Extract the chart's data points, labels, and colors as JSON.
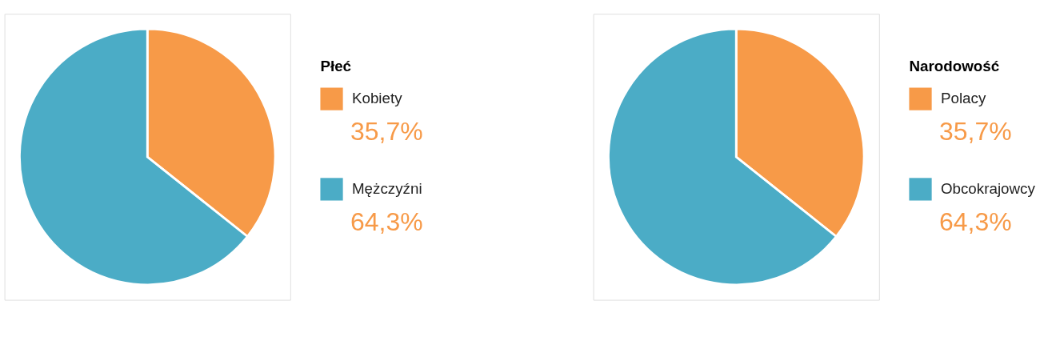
{
  "chart_data": [
    {
      "type": "pie",
      "legend_title": "Płeć",
      "categories": [
        "Kobiety",
        "Mężczyźni"
      ],
      "values": [
        35.7,
        64.3
      ],
      "colors": [
        "#f79a48",
        "#4bacc6"
      ],
      "value_labels": [
        "35,7%",
        "64,3%"
      ],
      "legend": "right"
    },
    {
      "type": "pie",
      "legend_title": "Narodowość",
      "categories": [
        "Polacy",
        "Obcokrajowcy"
      ],
      "values": [
        35.7,
        64.3
      ],
      "colors": [
        "#f79a48",
        "#4bacc6"
      ],
      "value_labels": [
        "35,7%",
        "64,3%"
      ],
      "legend": "right"
    }
  ]
}
